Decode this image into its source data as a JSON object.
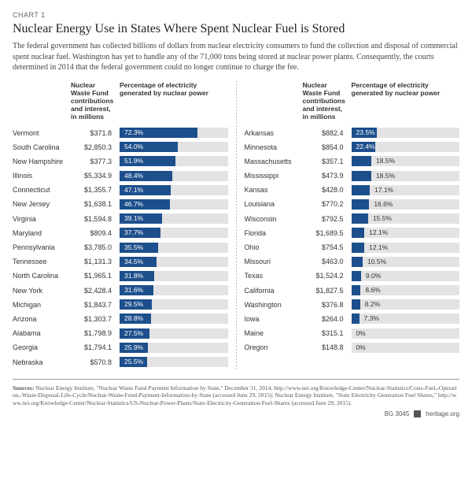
{
  "chart_label": "CHART 1",
  "title": "Nuclear Energy Use in States Where Spent Nuclear Fuel is Stored",
  "description": "The federal government has collected billions of dollars from nuclear electricity consumers to fund the collection and disposal of commercial spent nuclear fuel. Washington has yet to handle any of the 71,000 tons being stored at nuclear power plants. Consequently, the courts determined in 2014 that the federal government could no longer continue to charge the fee.",
  "col_header_contrib": "Nuclear Waste Fund contributions and interest, in millions",
  "col_header_pct": "Percentage of electricity generated by nuclear power",
  "bar_color": "#1d4f8c",
  "bar_bg": "#e3e3e3",
  "pct_max": 100,
  "left": [
    {
      "state": "Vermont",
      "contrib": "$371.8",
      "pct": 72.3
    },
    {
      "state": "South Carolina",
      "contrib": "$2,850.3",
      "pct": 54.0
    },
    {
      "state": "New Hampshire",
      "contrib": "$377.3",
      "pct": 51.9
    },
    {
      "state": "Illinois",
      "contrib": "$5,334.9",
      "pct": 48.4
    },
    {
      "state": "Connecticut",
      "contrib": "$1,355.7",
      "pct": 47.1
    },
    {
      "state": "New Jersey",
      "contrib": "$1,638.1",
      "pct": 46.7
    },
    {
      "state": "Virginia",
      "contrib": "$1,594.8",
      "pct": 39.1
    },
    {
      "state": "Maryland",
      "contrib": "$809.4",
      "pct": 37.7
    },
    {
      "state": "Pennsylvania",
      "contrib": "$3,785.0",
      "pct": 35.5
    },
    {
      "state": "Tennessee",
      "contrib": "$1,131.3",
      "pct": 34.5
    },
    {
      "state": "North Carolina",
      "contrib": "$1,965.1",
      "pct": 31.8
    },
    {
      "state": "New York",
      "contrib": "$2,428.4",
      "pct": 31.6
    },
    {
      "state": "Michigan",
      "contrib": "$1,843.7",
      "pct": 29.5
    },
    {
      "state": "Arizona",
      "contrib": "$1,303.7",
      "pct": 28.8
    },
    {
      "state": "Alabama",
      "contrib": "$1,798.9",
      "pct": 27.5
    },
    {
      "state": "Georgia",
      "contrib": "$1,794.1",
      "pct": 25.9
    },
    {
      "state": "Nebraska",
      "contrib": "$570.8",
      "pct": 25.5
    }
  ],
  "right": [
    {
      "state": "Arkansas",
      "contrib": "$882.4",
      "pct": 23.5
    },
    {
      "state": "Minnesota",
      "contrib": "$854.0",
      "pct": 22.4
    },
    {
      "state": "Massachusetts",
      "contrib": "$357.1",
      "pct": 18.5
    },
    {
      "state": "Mississippi",
      "contrib": "$473.9",
      "pct": 18.5
    },
    {
      "state": "Kansas",
      "contrib": "$428.0",
      "pct": 17.1
    },
    {
      "state": "Louisiana",
      "contrib": "$770.2",
      "pct": 16.6
    },
    {
      "state": "Wisconsin",
      "contrib": "$792.5",
      "pct": 15.5
    },
    {
      "state": "Florida",
      "contrib": "$1,689.5",
      "pct": 12.1
    },
    {
      "state": "Ohio",
      "contrib": "$754.5",
      "pct": 12.1
    },
    {
      "state": "Missouri",
      "contrib": "$463.0",
      "pct": 10.5
    },
    {
      "state": "Texas",
      "contrib": "$1,524.2",
      "pct": 9.0
    },
    {
      "state": "California",
      "contrib": "$1,827.5",
      "pct": 8.6
    },
    {
      "state": "Washington",
      "contrib": "$376.8",
      "pct": 8.2
    },
    {
      "state": "Iowa",
      "contrib": "$264.0",
      "pct": 7.3
    },
    {
      "state": "Maine",
      "contrib": "$315.1",
      "pct": 0
    },
    {
      "state": "Oregon",
      "contrib": "$148.8",
      "pct": 0
    }
  ],
  "sources_label": "Sources:",
  "sources_text": " Nuclear Energy Institute, \"Nuclear Waste Fund Payment Information by State,\" December 31, 2014, http://www.nei.org/Knowledge-Center/Nuclear-Statistics/Costs-Fuel,-Operation,-Waste-Disposal-Life-Cycle/Nuclear-Waste-Fund-Payment-Information-by-State (accessed June 29, 2015); Nuclear Energy Institute, \"State Electricity Generation Fuel Shares,\" http://www.nei.org/Knowledge-Center/Nuclear-Statistics/US-Nuclear-Power-Plants/State-Electricity-Generation-Fuel-Shares (accessed June 29, 2015).",
  "footer_code": "BG 3045",
  "footer_org": "heritage.org"
}
